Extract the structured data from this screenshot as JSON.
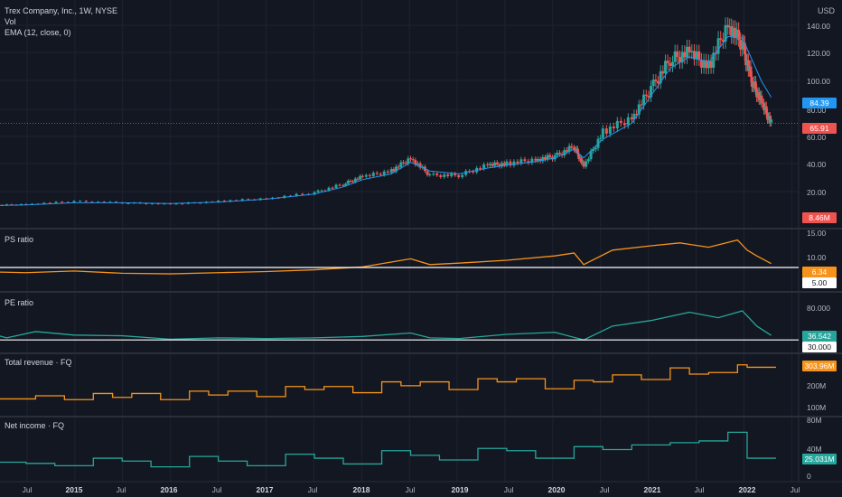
{
  "legend": {
    "symbol": "Trex Company, Inc., 1W, NYSE",
    "volume": "Vol",
    "ema": "EMA (12, close, 0)"
  },
  "currency": "USD",
  "colors": {
    "background": "#131722",
    "grid": "#1f2331",
    "up": "#26a69a",
    "down": "#ef5350",
    "ema": "#2196f3",
    "ps": "#f7931a",
    "pe": "#26a69a",
    "revenue": "#f7931a",
    "netincome": "#26a69a",
    "threshold": "#ffffff"
  },
  "panes": [
    {
      "id": "price",
      "title": "",
      "y_ticks": [
        "140.00",
        "120.00",
        "100.00",
        "80.00",
        "60.00",
        "40.00",
        "20.00"
      ],
      "badges": [
        {
          "text": "84.39",
          "color": "#2196f3"
        },
        {
          "text": "65.91",
          "color": "#ef5350"
        },
        {
          "text": "8.46M",
          "color": "#ef5350"
        }
      ]
    },
    {
      "id": "ps",
      "title": "PS ratio",
      "y_ticks": [
        "15.00",
        "10.00",
        "5.00"
      ],
      "badges": [
        {
          "text": "6.34",
          "color": "#f7931a"
        },
        {
          "text": "5.00",
          "color": "#ffffff",
          "dark": true
        }
      ]
    },
    {
      "id": "pe",
      "title": "PE ratio",
      "y_ticks": [
        "80.000",
        "30.000"
      ],
      "badges": [
        {
          "text": "36.542",
          "color": "#26a69a"
        },
        {
          "text": "30.000",
          "color": "#ffffff",
          "dark": true
        }
      ]
    },
    {
      "id": "rev",
      "title": "Total revenue · FQ",
      "y_ticks": [
        "200M",
        "100M"
      ],
      "badges": [
        {
          "text": "303.96M",
          "color": "#f7931a"
        }
      ]
    },
    {
      "id": "ni",
      "title": "Net income · FQ",
      "y_ticks": [
        "80M",
        "40M",
        "0"
      ],
      "badges": [
        {
          "text": "25.031M",
          "color": "#26a69a"
        }
      ]
    }
  ],
  "x_axis": [
    {
      "t": "Jul",
      "year": false
    },
    {
      "t": "2015",
      "year": true
    },
    {
      "t": "Jul",
      "year": false
    },
    {
      "t": "2016",
      "year": true
    },
    {
      "t": "Jul",
      "year": false
    },
    {
      "t": "2017",
      "year": true
    },
    {
      "t": "Jul",
      "year": false
    },
    {
      "t": "2018",
      "year": true
    },
    {
      "t": "Jul",
      "year": false
    },
    {
      "t": "2019",
      "year": true
    },
    {
      "t": "Jul",
      "year": false
    },
    {
      "t": "2020",
      "year": true
    },
    {
      "t": "Jul",
      "year": false
    },
    {
      "t": "2021",
      "year": true
    },
    {
      "t": "Jul",
      "year": false
    },
    {
      "t": "2022",
      "year": true
    },
    {
      "t": "Jul",
      "year": false
    }
  ],
  "chart_data": [
    {
      "type": "line",
      "title": "Trex Company, Inc., 1W, NYSE",
      "ylabel": "USD",
      "ylim": [
        0,
        145
      ],
      "x": [
        2014.1,
        2014.5,
        2015.0,
        2015.5,
        2016.0,
        2016.5,
        2017.0,
        2017.5,
        2017.8,
        2018.0,
        2018.3,
        2018.5,
        2018.7,
        2019.0,
        2019.3,
        2019.5,
        2019.8,
        2020.0,
        2020.2,
        2020.3,
        2020.5,
        2020.8,
        2021.0,
        2021.2,
        2021.4,
        2021.6,
        2021.8,
        2021.95,
        2022.05,
        2022.15,
        2022.25
      ],
      "series": [
        {
          "name": "Close",
          "values": [
            9,
            10,
            12,
            11,
            10,
            12,
            14,
            18,
            24,
            29,
            33,
            42,
            30,
            30,
            37,
            38,
            41,
            43,
            50,
            36,
            60,
            70,
            90,
            110,
            115,
            105,
            135,
            120,
            95,
            80,
            66
          ]
        },
        {
          "name": "EMA (12, close, 0)",
          "values": [
            9,
            9.5,
            11,
            11,
            10.5,
            11.5,
            13.5,
            17,
            22,
            27,
            31,
            39,
            33,
            31,
            35,
            37,
            39.5,
            42,
            48,
            42,
            55,
            66,
            85,
            104,
            112,
            108,
            126,
            125,
            110,
            95,
            84
          ]
        }
      ]
    },
    {
      "type": "line",
      "title": "PS ratio",
      "ylim": [
        0,
        15
      ],
      "x": [
        2014.1,
        2014.5,
        2015.0,
        2015.5,
        2016.0,
        2016.5,
        2017.0,
        2017.5,
        2018.0,
        2018.5,
        2018.7,
        2019.0,
        2019.5,
        2020.0,
        2020.2,
        2020.3,
        2020.6,
        2021.0,
        2021.3,
        2021.6,
        2021.9,
        2022.0,
        2022.1,
        2022.25
      ],
      "series": [
        {
          "name": "PS ratio",
          "values": [
            3.5,
            3.2,
            3.8,
            3.0,
            2.8,
            3.2,
            3.6,
            4.2,
            5.2,
            8.0,
            6.0,
            6.5,
            7.5,
            9.0,
            10.0,
            6.0,
            11.0,
            12.5,
            13.5,
            12.0,
            14.5,
            11.0,
            9.0,
            6.34
          ]
        }
      ]
    },
    {
      "type": "line",
      "title": "PE ratio",
      "ylim": [
        25,
        85
      ],
      "x": [
        2014.1,
        2014.3,
        2014.6,
        2015.0,
        2015.5,
        2016.0,
        2016.5,
        2017.0,
        2017.5,
        2018.0,
        2018.5,
        2018.7,
        2019.0,
        2019.5,
        2020.0,
        2020.3,
        2020.6,
        2021.0,
        2021.4,
        2021.7,
        2021.95,
        2022.1,
        2022.25
      ],
      "series": [
        {
          "name": "PE ratio",
          "values": [
            40,
            33,
            42,
            37,
            36,
            31,
            33,
            32,
            33,
            35,
            40,
            33,
            32,
            38,
            41,
            30,
            50,
            58,
            70,
            62,
            72,
            50,
            36.5
          ]
        }
      ]
    },
    {
      "type": "line",
      "title": "Total revenue · FQ",
      "ylim": [
        50,
        330
      ],
      "x": [
        2014.1,
        2014.6,
        2014.9,
        2015.2,
        2015.4,
        2015.6,
        2015.9,
        2016.2,
        2016.4,
        2016.6,
        2016.9,
        2017.2,
        2017.4,
        2017.6,
        2017.9,
        2018.2,
        2018.4,
        2018.6,
        2018.9,
        2019.2,
        2019.4,
        2019.6,
        2019.9,
        2020.2,
        2020.4,
        2020.6,
        2020.9,
        2021.2,
        2021.4,
        2021.6,
        2021.9,
        2022.0,
        2022.25
      ],
      "series": [
        {
          "name": "Total revenue",
          "values": [
            100,
            120,
            95,
            135,
            110,
            135,
            95,
            150,
            125,
            150,
            115,
            180,
            160,
            180,
            140,
            210,
            185,
            210,
            160,
            230,
            210,
            230,
            165,
            220,
            210,
            255,
            225,
            300,
            260,
            270,
            320,
            304,
            304
          ]
        }
      ]
    },
    {
      "type": "line",
      "title": "Net income · FQ",
      "ylim": [
        0,
        80
      ],
      "x": [
        2014.1,
        2014.5,
        2014.8,
        2015.2,
        2015.5,
        2015.8,
        2016.2,
        2016.5,
        2016.8,
        2017.2,
        2017.5,
        2017.8,
        2018.2,
        2018.5,
        2018.8,
        2019.2,
        2019.5,
        2019.8,
        2020.2,
        2020.5,
        2020.8,
        2021.2,
        2021.5,
        2021.8,
        2022.0,
        2022.25
      ],
      "series": [
        {
          "name": "Net income",
          "values": [
            18,
            16,
            12,
            25,
            20,
            10,
            28,
            20,
            12,
            32,
            25,
            15,
            38,
            30,
            22,
            42,
            38,
            25,
            45,
            40,
            48,
            52,
            55,
            70,
            25,
            25
          ]
        }
      ]
    }
  ]
}
